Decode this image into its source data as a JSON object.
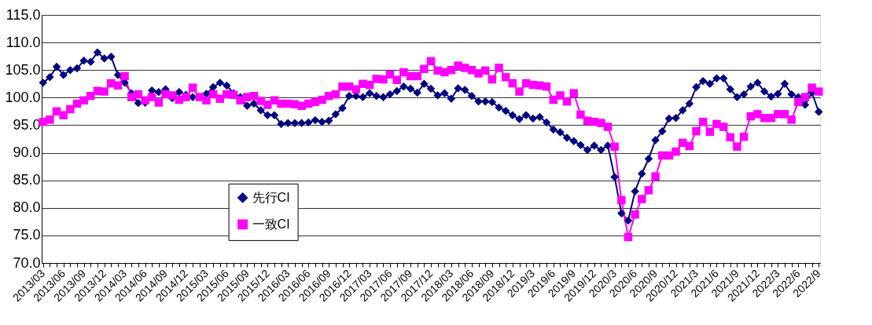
{
  "chart_data": {
    "type": "line",
    "categories": [
      "2013/03",
      null,
      null,
      "2013/06",
      null,
      null,
      "2013/09",
      null,
      null,
      "2013/12",
      null,
      null,
      "2014/03",
      null,
      null,
      "2014/06",
      null,
      null,
      "2014/09",
      null,
      null,
      "2014/12",
      null,
      null,
      "2015/03",
      null,
      null,
      "2015/06",
      null,
      null,
      "2015/09",
      null,
      null,
      "2015/12",
      null,
      null,
      "2016/03",
      null,
      null,
      "2016/06",
      null,
      null,
      "2016/09",
      null,
      null,
      "2016/12",
      null,
      null,
      "2017/03",
      null,
      null,
      "2017/06",
      null,
      null,
      "2017/09",
      null,
      null,
      "2017/12",
      null,
      null,
      "2018/03",
      null,
      null,
      "2018/06",
      null,
      null,
      "2018/09",
      null,
      null,
      "2018/12",
      null,
      null,
      "2019/3",
      null,
      null,
      "2019/6",
      null,
      null,
      "2019/9",
      null,
      null,
      "2019/12",
      null,
      null,
      "2020/3",
      null,
      null,
      "2020/6",
      null,
      null,
      "2020/9",
      null,
      null,
      "2020/12",
      null,
      null,
      "2021/3",
      null,
      null,
      "2021/6",
      null,
      null,
      "2021/9",
      null,
      null,
      "2021/12",
      null,
      null,
      "2022/3",
      null,
      null,
      "2022/6",
      null,
      null,
      "2022/9"
    ],
    "series": [
      {
        "name": "先行CI",
        "color": "#000080",
        "marker": "diamond",
        "values": [
          102.7,
          103.7,
          105.6,
          104.1,
          105.0,
          105.3,
          106.7,
          106.5,
          108.2,
          107.1,
          107.4,
          104.1,
          102.7,
          100.8,
          99.0,
          99.1,
          101.3,
          101.0,
          101.5,
          99.9,
          101.0,
          100.5,
          100.1,
          null,
          100.7,
          101.9,
          102.7,
          102.2,
          100.8,
          100.1,
          98.5,
          98.9,
          97.7,
          96.8,
          96.8,
          95.2,
          95.4,
          95.4,
          95.4,
          95.5,
          95.9,
          95.6,
          95.8,
          97.0,
          98.1,
          100.3,
          100.3,
          100.1,
          100.8,
          100.3,
          100.1,
          100.6,
          101.2,
          102.0,
          101.6,
          100.9,
          102.5,
          101.6,
          100.4,
          100.8,
          99.8,
          101.7,
          101.4,
          100.3,
          99.3,
          99.3,
          99.2,
          98.2,
          97.6,
          96.8,
          96.1,
          96.8,
          96.2,
          96.5,
          95.5,
          94.2,
          93.7,
          92.7,
          92.1,
          91.4,
          90.5,
          91.3,
          90.5,
          91.3,
          85.6,
          79.0,
          77.7,
          83.0,
          86.2,
          88.9,
          92.3,
          93.9,
          96.2,
          96.3,
          97.7,
          98.9,
          101.9,
          103.0,
          102.5,
          103.5,
          103.5,
          101.5,
          100.1,
          100.6,
          102.0,
          102.7,
          101.1,
          100.2,
          100.7,
          102.5,
          100.6,
          100.1,
          98.7,
          100.9,
          97.4
        ]
      },
      {
        "name": "一致CI",
        "color": "#ff00ff",
        "marker": "square",
        "values": [
          95.6,
          96.0,
          97.5,
          96.8,
          97.9,
          98.9,
          99.5,
          100.3,
          101.2,
          101.1,
          102.6,
          102.2,
          103.9,
          100.1,
          100.6,
          99.5,
          100.1,
          99.1,
          100.6,
          100.4,
          99.6,
          100.1,
          101.8,
          100.1,
          99.5,
          100.6,
          99.8,
          100.6,
          100.5,
          99.5,
          100.1,
          100.3,
          99.4,
          98.7,
          99.5,
          98.9,
          98.9,
          98.8,
          98.5,
          98.9,
          99.2,
          99.6,
          100.3,
          100.6,
          102.0,
          102.0,
          101.5,
          102.5,
          102.3,
          103.4,
          103.3,
          104.2,
          103.2,
          104.6,
          103.9,
          103.9,
          105.2,
          106.6,
          104.9,
          104.6,
          105.0,
          105.8,
          105.4,
          105.0,
          104.4,
          104.9,
          103.3,
          105.4,
          103.7,
          102.6,
          101.1,
          102.6,
          102.3,
          102.2,
          102.0,
          99.6,
          100.4,
          99.3,
          100.8,
          96.9,
          95.8,
          95.6,
          95.4,
          94.7,
          91.1,
          81.4,
          74.7,
          78.8,
          81.6,
          83.2,
          85.7,
          89.5,
          89.5,
          90.2,
          91.8,
          91.2,
          93.9,
          95.6,
          93.8,
          95.2,
          94.7,
          92.8,
          91.1,
          92.9,
          96.6,
          97.0,
          96.3,
          96.3,
          97.0,
          97.0,
          96.0,
          99.2,
          100.1,
          101.8,
          101.1
        ]
      }
    ],
    "ylim": [
      70,
      115
    ],
    "yticks": [
      {
        "value": 70,
        "label": "70.0"
      },
      {
        "value": 75,
        "label": "75.0"
      },
      {
        "value": 80,
        "label": "80.0"
      },
      {
        "value": 85,
        "label": "85.0"
      },
      {
        "value": 90,
        "label": "90.0"
      },
      {
        "value": 95,
        "label": "95.0"
      },
      {
        "value": 100,
        "label": "100.0"
      },
      {
        "value": 105,
        "label": "105.0"
      },
      {
        "value": 110,
        "label": "110.0"
      },
      {
        "value": 115,
        "label": "115.0"
      }
    ],
    "grid": "y",
    "legend": "bottom"
  }
}
